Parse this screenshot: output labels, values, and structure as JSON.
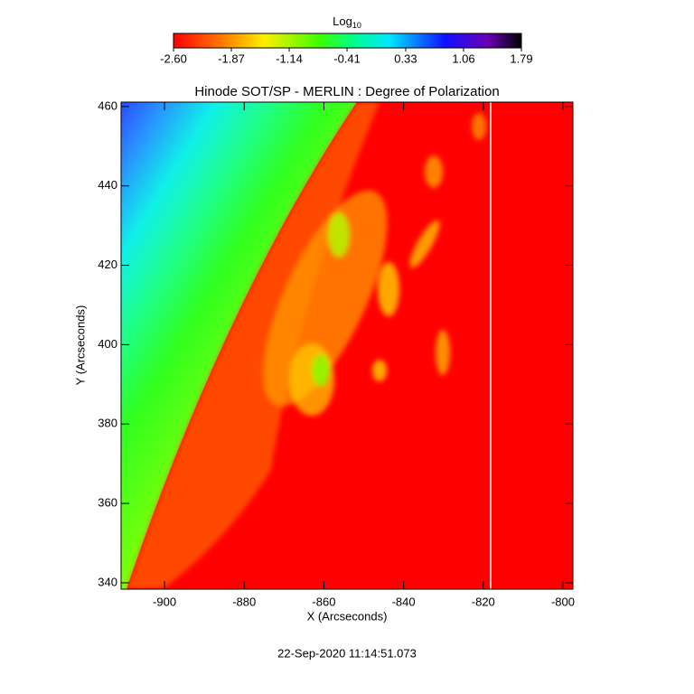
{
  "chart_data": {
    "type": "image",
    "title": "Hinode SOT/SP - MERLIN : Degree of Polarization",
    "x_label": "X (Arcseconds)",
    "y_label": "Y (Arcseconds)",
    "xlim": [
      -910.9,
      -797.5
    ],
    "ylim": [
      338.4,
      461.1
    ],
    "xticks": [
      -900,
      -880,
      -860,
      -840,
      -820,
      -800
    ],
    "yticks": [
      340,
      360,
      380,
      400,
      420,
      440,
      460
    ],
    "colorbar": {
      "label": "Log",
      "label_subscript": "10",
      "range": [
        -2.6,
        1.79
      ],
      "ticks": [
        {
          "value": -2.6,
          "label": "-2.60"
        },
        -1.87,
        -1.14,
        -0.41,
        0.33,
        1.06,
        1.79
      ]
    },
    "timestamp": "22-Sep-2020 11:14:51.073"
  }
}
